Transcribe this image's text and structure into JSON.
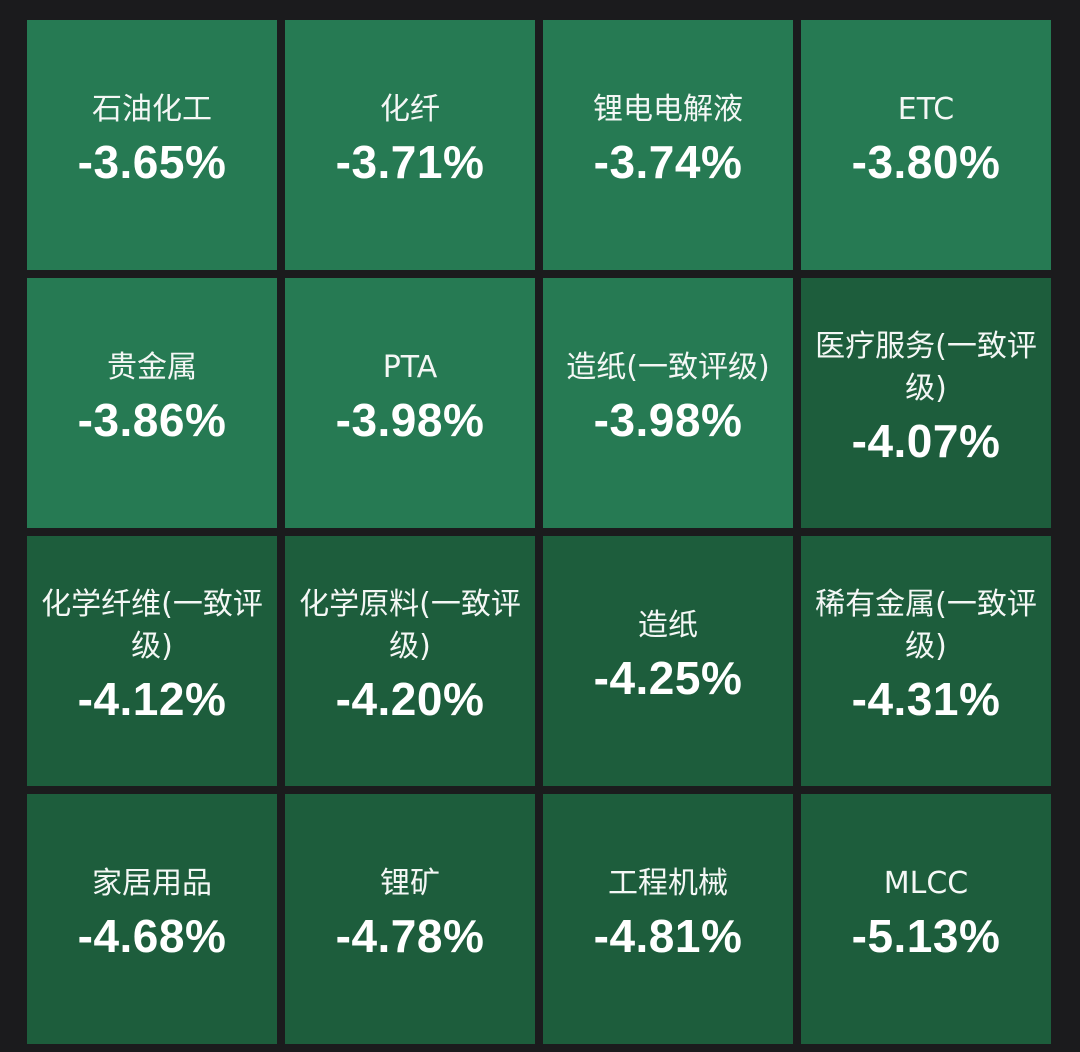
{
  "heatmap": {
    "tiles": [
      {
        "name": "石油化工",
        "change": "-3.65%",
        "color": "#267a53"
      },
      {
        "name": "化纤",
        "change": "-3.71%",
        "color": "#267a53"
      },
      {
        "name": "锂电电解液",
        "change": "-3.74%",
        "color": "#267a53"
      },
      {
        "name": "ETC",
        "change": "-3.80%",
        "color": "#267a53"
      },
      {
        "name": "贵金属",
        "change": "-3.86%",
        "color": "#267a53"
      },
      {
        "name": "PTA",
        "change": "-3.98%",
        "color": "#267a53"
      },
      {
        "name": "造纸(一致评级)",
        "change": "-3.98%",
        "color": "#267a53"
      },
      {
        "name": "医疗服务(一致评级)",
        "change": "-4.07%",
        "color": "#1d5d3c"
      },
      {
        "name": "化学纤维(一致评级)",
        "change": "-4.12%",
        "color": "#1d5d3c"
      },
      {
        "name": "化学原料(一致评级)",
        "change": "-4.20%",
        "color": "#1d5d3c"
      },
      {
        "name": "造纸",
        "change": "-4.25%",
        "color": "#1d5d3c"
      },
      {
        "name": "稀有金属(一致评级)",
        "change": "-4.31%",
        "color": "#1d5d3c"
      },
      {
        "name": "家居用品",
        "change": "-4.68%",
        "color": "#1d5d3c"
      },
      {
        "name": "锂矿",
        "change": "-4.78%",
        "color": "#1d5d3c"
      },
      {
        "name": "工程机械",
        "change": "-4.81%",
        "color": "#1d5d3c"
      },
      {
        "name": "MLCC",
        "change": "-5.13%",
        "color": "#1d5d3c"
      }
    ]
  }
}
